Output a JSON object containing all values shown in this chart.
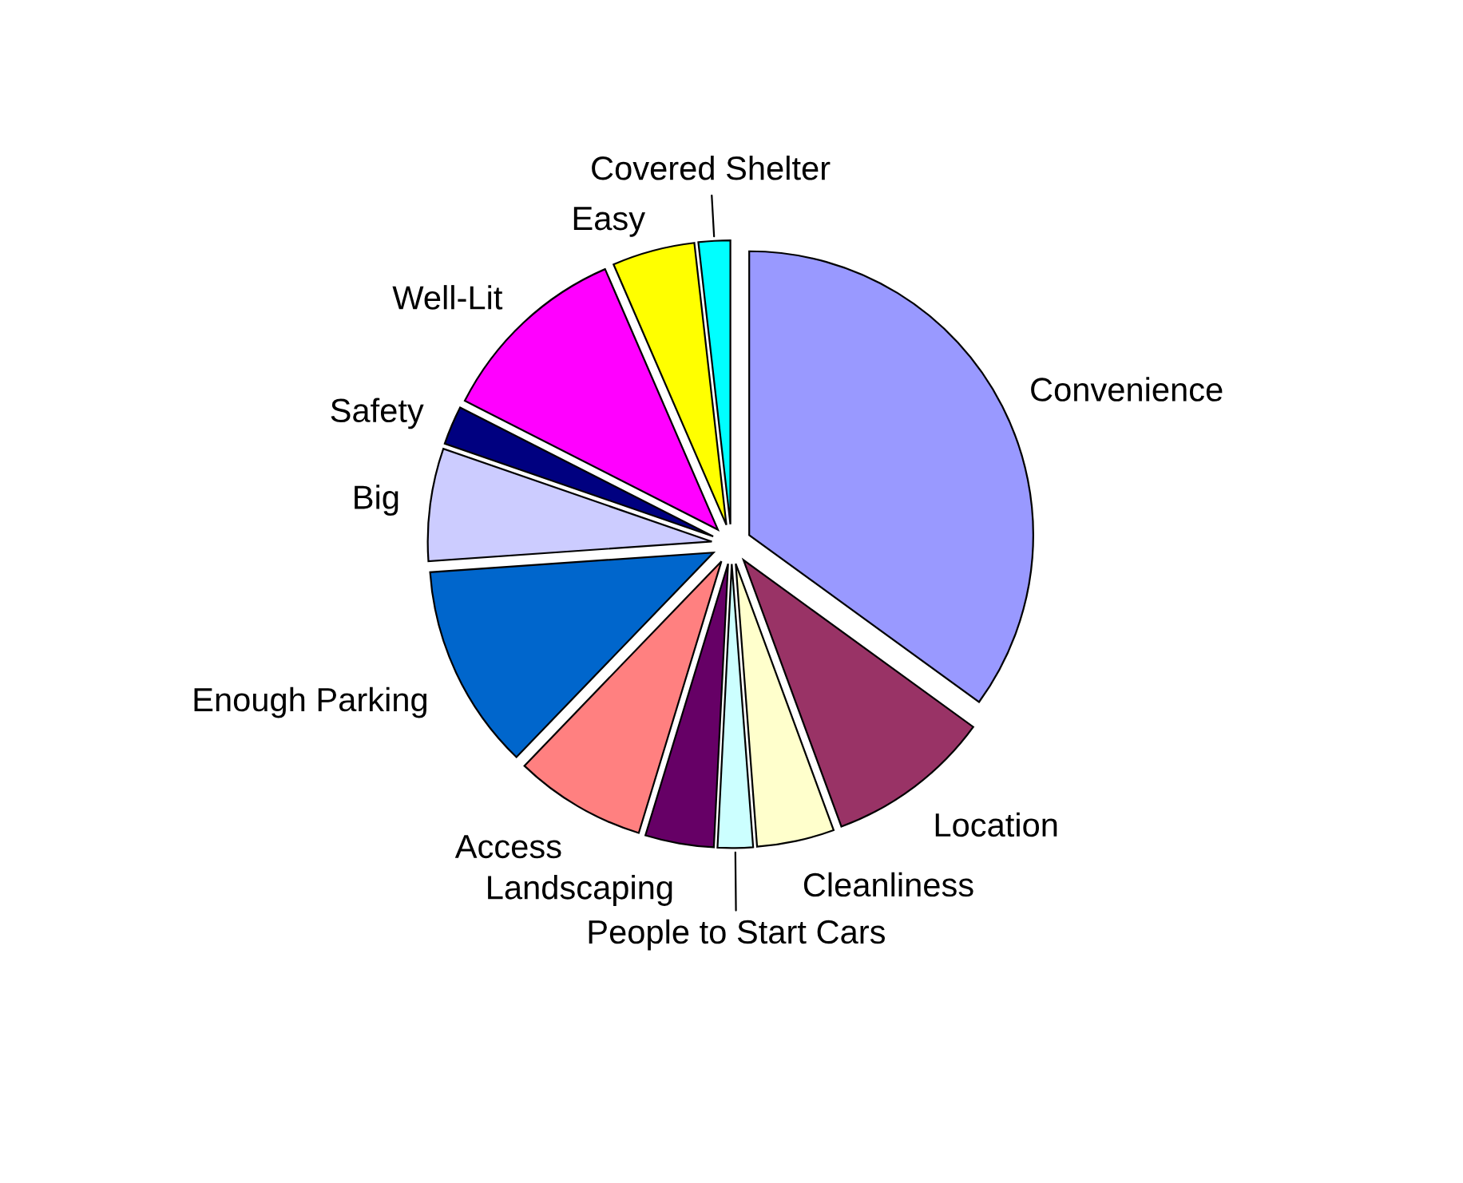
{
  "chart_data": {
    "type": "pie",
    "categories": [
      "Convenience",
      "Location",
      "Cleanliness",
      "People to Start Cars",
      "Landscaping",
      "Access",
      "Enough Parking",
      "Big",
      "Safety",
      "Well-Lit",
      "Easy",
      "Covered Shelter"
    ],
    "values": [
      35,
      9.4,
      4.4,
      2,
      3.9,
      7.5,
      11.7,
      6.4,
      2.2,
      11,
      4.7,
      1.8
    ],
    "colors": [
      "#9999ff",
      "#993366",
      "#ffffcc",
      "#ccffff",
      "#660066",
      "#ff8080",
      "#0066cc",
      "#ccccff",
      "#000080",
      "#ff00ff",
      "#ffff00",
      "#00ffff"
    ],
    "legend": false
  }
}
